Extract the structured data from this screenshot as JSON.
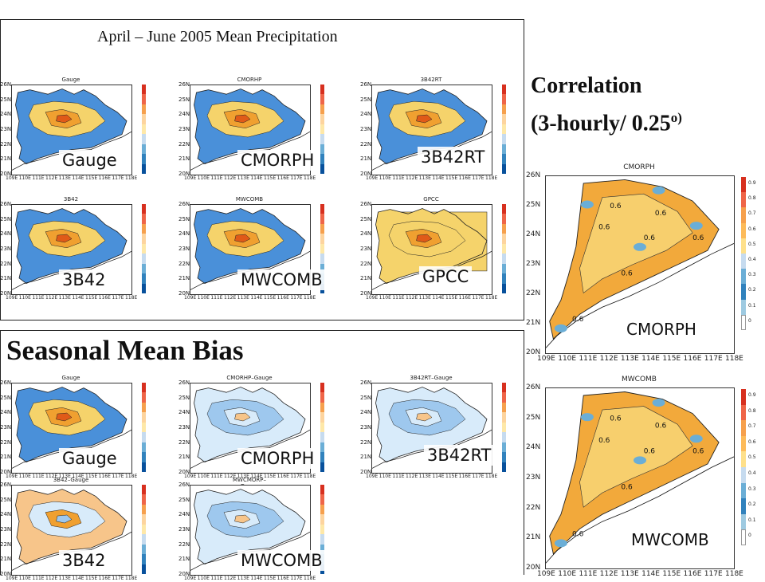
{
  "top_title": "April – June 2005 Mean Precipitation",
  "bias_title": "Seasonal Mean Bias",
  "correlation_title_line1": "Correlation",
  "correlation_title_line2": "(3-hourly/ 0.25",
  "correlation_superscript": "o)",
  "precip_panels": [
    {
      "small_title": "Gauge",
      "label": "Gauge"
    },
    {
      "small_title": "CMORHP",
      "label": "CMORPH"
    },
    {
      "small_title": "3B42RT",
      "label": "3B42RT"
    },
    {
      "small_title": "3B42",
      "label": "3B42"
    },
    {
      "small_title": "MWCOMB",
      "label": "MWCOMB"
    },
    {
      "small_title": "GPCC",
      "label": "GPCC"
    }
  ],
  "bias_panels": [
    {
      "small_title": "Gauge",
      "label": "Gauge"
    },
    {
      "small_title": "CMORHP–Gauge",
      "label": "CMORPH"
    },
    {
      "small_title": "3B42RT–Gauge",
      "label": "3B42RT"
    },
    {
      "small_title": "3B42–Gauge",
      "label": "3B42"
    },
    {
      "small_title": "MWCMORP–Gauge",
      "label": "MWCOMB"
    }
  ],
  "corr_panels": [
    {
      "small_title": "CMORPH",
      "label": "CMORPH"
    },
    {
      "small_title": "MWCOMB",
      "label": "MWCOMB"
    }
  ],
  "small_lat_ticks": [
    "26N",
    "25N",
    "24N",
    "23N",
    "22N",
    "21N",
    "20N"
  ],
  "small_lon_ticks": [
    "109E",
    "110E",
    "111E",
    "112E",
    "113E",
    "114E",
    "115E",
    "116E",
    "117E",
    "118E"
  ],
  "corr_lat_ticks": [
    "26N",
    "25N",
    "24N",
    "23N",
    "22N",
    "21N",
    "20N"
  ],
  "corr_lon_ticks": [
    "109E",
    "110E",
    "111E",
    "112E",
    "113E",
    "114E",
    "115E",
    "116E",
    "117E",
    "118E"
  ],
  "corr_colorbar_ticks": [
    "0.9",
    "0.8",
    "0.7",
    "0.6",
    "0.5",
    "0.4",
    "0.3",
    "0.2",
    "0.1",
    "0"
  ],
  "corr_contour_label": "0.6",
  "colors": {
    "ocean": "#ffffff",
    "land_dry": "#4a90d9",
    "land_mid": "#f5d36b",
    "land_wet": "#f0a030",
    "land_core": "#e05a18",
    "bias_light": "#d8ebfa",
    "bias_blue": "#9ec8ee",
    "bias_orange": "#f7c58a",
    "corr_orange": "#f2a93b",
    "corr_light": "#f7cf6d"
  }
}
